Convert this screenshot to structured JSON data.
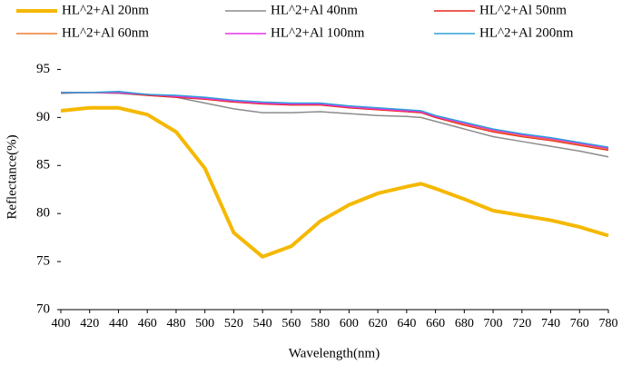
{
  "chart_data": {
    "type": "line",
    "x_label": "Wavelength(nm)",
    "y_label": "Reflectance(%)",
    "x": [
      400,
      420,
      440,
      460,
      480,
      500,
      520,
      540,
      560,
      580,
      600,
      620,
      640,
      650,
      660,
      680,
      700,
      720,
      740,
      760,
      780
    ],
    "series": [
      {
        "name": "HL^2+Al 20nm",
        "color": "#f5b800",
        "width": 4,
        "values": [
          90.7,
          91.0,
          91.0,
          90.3,
          88.5,
          84.7,
          78.0,
          75.5,
          76.6,
          79.2,
          80.9,
          82.1,
          82.8,
          83.1,
          82.6,
          81.5,
          80.3,
          79.8,
          79.3,
          78.6,
          77.7
        ]
      },
      {
        "name": "HL^2+Al 40nm",
        "color": "#8c8c8c",
        "width": 1.5,
        "values": [
          92.5,
          92.6,
          92.5,
          92.3,
          92.1,
          91.5,
          90.9,
          90.5,
          90.5,
          90.6,
          90.4,
          90.2,
          90.1,
          90.0,
          89.6,
          88.8,
          88.0,
          87.5,
          87.0,
          86.5,
          85.9
        ]
      },
      {
        "name": "HL^2+Al 50nm",
        "color": "#e6261f",
        "width": 1.5,
        "values": [
          92.6,
          92.6,
          92.6,
          92.3,
          92.1,
          91.9,
          91.6,
          91.4,
          91.3,
          91.3,
          91.0,
          90.8,
          90.6,
          90.5,
          90.0,
          89.2,
          88.5,
          88.0,
          87.6,
          87.1,
          86.6
        ]
      },
      {
        "name": "HL^2+Al 60nm",
        "color": "#ed7d31",
        "width": 1.5,
        "values": [
          92.6,
          92.6,
          92.6,
          92.4,
          92.2,
          92.0,
          91.7,
          91.5,
          91.4,
          91.4,
          91.1,
          90.9,
          90.7,
          90.6,
          90.1,
          89.3,
          88.6,
          88.1,
          87.7,
          87.2,
          86.7
        ]
      },
      {
        "name": "HL^2+Al 100nm",
        "color": "#e633e6",
        "width": 1.5,
        "values": [
          92.6,
          92.6,
          92.6,
          92.4,
          92.2,
          92.0,
          91.7,
          91.5,
          91.4,
          91.4,
          91.1,
          90.9,
          90.7,
          90.6,
          90.1,
          89.4,
          88.7,
          88.2,
          87.8,
          87.3,
          86.8
        ]
      },
      {
        "name": "HL^2+Al 200nm",
        "color": "#2e9fd8",
        "width": 1.5,
        "values": [
          92.6,
          92.6,
          92.7,
          92.4,
          92.3,
          92.1,
          91.8,
          91.6,
          91.5,
          91.5,
          91.2,
          91.0,
          90.8,
          90.7,
          90.2,
          89.5,
          88.8,
          88.3,
          87.9,
          87.4,
          86.9
        ]
      }
    ],
    "xlim": [
      400,
      780
    ],
    "xticks": [
      400,
      420,
      440,
      460,
      480,
      500,
      520,
      540,
      560,
      580,
      600,
      620,
      640,
      660,
      680,
      700,
      720,
      740,
      760,
      780
    ],
    "ylim": [
      70,
      97.5
    ],
    "yticks": [
      70,
      75,
      80,
      85,
      90,
      95
    ]
  }
}
